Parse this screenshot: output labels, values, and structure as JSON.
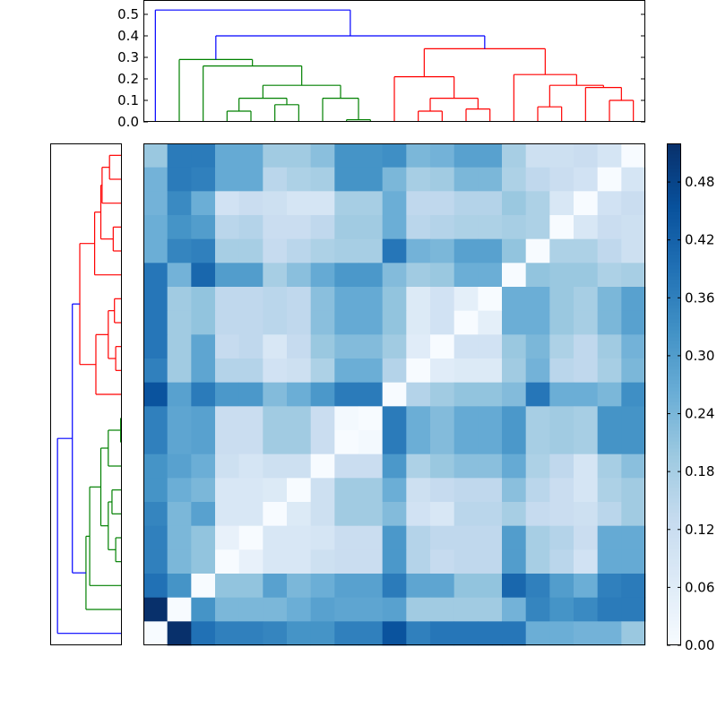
{
  "chart_data": [
    {
      "type": "dendrogram",
      "orientation": "top",
      "ylim": [
        0,
        0.55
      ],
      "yticks": [
        0.0,
        0.1,
        0.2,
        0.3,
        0.4,
        0.5
      ],
      "ytick_labels": [
        "0.0",
        "0.1",
        "0.2",
        "0.3",
        "0.4",
        "0.5"
      ],
      "leaf_count": 21,
      "root": {
        "h": 0.52,
        "color": "blue",
        "children": [
          {
            "leaf": 0
          },
          {
            "h": 0.4,
            "color": "blue",
            "children": [
              {
                "h": 0.29,
                "color": "green",
                "children": [
                  {
                    "leaf": 1
                  },
                  {
                    "h": 0.26,
                    "color": "green",
                    "children": [
                      {
                        "leaf": 2
                      },
                      {
                        "h": 0.17,
                        "color": "green",
                        "children": [
                          {
                            "h": 0.11,
                            "color": "green",
                            "children": [
                              {
                                "h": 0.05,
                                "color": "green",
                                "children": [
                                  {
                                    "leaf": 3
                                  },
                                  {
                                    "leaf": 4
                                  }
                                ]
                              },
                              {
                                "h": 0.08,
                                "color": "green",
                                "children": [
                                  {
                                    "leaf": 5
                                  },
                                  {
                                    "leaf": 6
                                  }
                                ]
                              }
                            ]
                          },
                          {
                            "h": 0.11,
                            "color": "green",
                            "children": [
                              {
                                "leaf": 7
                              },
                              {
                                "h": 0.01,
                                "color": "green",
                                "children": [
                                  {
                                    "leaf": 8
                                  },
                                  {
                                    "leaf": 9
                                  }
                                ]
                              }
                            ]
                          }
                        ]
                      }
                    ]
                  }
                ]
              },
              {
                "h": 0.34,
                "color": "red",
                "children": [
                  {
                    "h": 0.21,
                    "color": "red",
                    "children": [
                      {
                        "leaf": 10
                      },
                      {
                        "h": 0.11,
                        "color": "red",
                        "children": [
                          {
                            "h": 0.05,
                            "color": "red",
                            "children": [
                              {
                                "leaf": 11
                              },
                              {
                                "leaf": 12
                              }
                            ]
                          },
                          {
                            "h": 0.06,
                            "color": "red",
                            "children": [
                              {
                                "leaf": 13
                              },
                              {
                                "leaf": 14
                              }
                            ]
                          }
                        ]
                      }
                    ]
                  },
                  {
                    "h": 0.22,
                    "color": "red",
                    "children": [
                      {
                        "leaf": 15
                      },
                      {
                        "h": 0.17,
                        "color": "red",
                        "children": [
                          {
                            "h": 0.07,
                            "color": "red",
                            "children": [
                              {
                                "leaf": 16
                              },
                              {
                                "leaf": 17
                              }
                            ]
                          },
                          {
                            "h": 0.16,
                            "color": "red",
                            "children": [
                              {
                                "leaf": 18
                              },
                              {
                                "h": 0.1,
                                "color": "red",
                                "children": [
                                  {
                                    "leaf": 19
                                  },
                                  {
                                    "leaf": 20
                                  }
                                ]
                              }
                            ]
                          }
                        ]
                      }
                    ]
                  }
                ]
              }
            ]
          }
        ]
      }
    },
    {
      "type": "dendrogram",
      "orientation": "left",
      "leaf_count": 21,
      "note": "same hierarchy as the top dendrogram, drawn from the left; leaf 0 at bottom row",
      "mirror_of": "top"
    },
    {
      "type": "heatmap",
      "rows": 21,
      "cols": 21,
      "colormap": "Blues",
      "vmin": 0.0,
      "vmax": 0.52,
      "row_order": "top row = leaf 20, bottom row = leaf 0",
      "col_order": "left column = leaf 0, right column = leaf 20",
      "cell_values_note": "pairwise distances; symmetric, diagonal = 0",
      "values": [
        [
          0.2,
          0.37,
          0.37,
          0.27,
          0.27,
          0.19,
          0.19,
          0.22,
          0.32,
          0.32,
          0.33,
          0.24,
          0.25,
          0.29,
          0.29,
          0.18,
          0.11,
          0.11,
          0.12,
          0.09,
          0.0
        ],
        [
          0.25,
          0.37,
          0.36,
          0.27,
          0.27,
          0.15,
          0.17,
          0.18,
          0.32,
          0.32,
          0.24,
          0.18,
          0.19,
          0.24,
          0.24,
          0.17,
          0.14,
          0.12,
          0.1,
          0.0,
          0.09
        ],
        [
          0.25,
          0.34,
          0.26,
          0.1,
          0.12,
          0.11,
          0.09,
          0.09,
          0.18,
          0.18,
          0.26,
          0.14,
          0.14,
          0.16,
          0.16,
          0.2,
          0.17,
          0.08,
          0.0,
          0.1,
          0.12
        ],
        [
          0.26,
          0.32,
          0.3,
          0.15,
          0.16,
          0.12,
          0.12,
          0.14,
          0.19,
          0.19,
          0.26,
          0.15,
          0.16,
          0.17,
          0.17,
          0.18,
          0.17,
          0.0,
          0.08,
          0.12,
          0.11
        ],
        [
          0.26,
          0.35,
          0.36,
          0.18,
          0.18,
          0.13,
          0.15,
          0.17,
          0.18,
          0.18,
          0.38,
          0.25,
          0.24,
          0.29,
          0.29,
          0.21,
          0.0,
          0.17,
          0.17,
          0.14,
          0.11
        ],
        [
          0.38,
          0.25,
          0.41,
          0.3,
          0.3,
          0.18,
          0.22,
          0.27,
          0.31,
          0.31,
          0.23,
          0.19,
          0.2,
          0.26,
          0.26,
          0.0,
          0.21,
          0.2,
          0.2,
          0.17,
          0.18
        ],
        [
          0.38,
          0.19,
          0.21,
          0.14,
          0.14,
          0.15,
          0.14,
          0.22,
          0.27,
          0.27,
          0.21,
          0.07,
          0.1,
          0.05,
          0.0,
          0.26,
          0.26,
          0.2,
          0.18,
          0.24,
          0.29
        ],
        [
          0.38,
          0.19,
          0.21,
          0.14,
          0.14,
          0.15,
          0.14,
          0.22,
          0.27,
          0.27,
          0.21,
          0.07,
          0.1,
          0.0,
          0.05,
          0.26,
          0.26,
          0.2,
          0.18,
          0.24,
          0.29
        ],
        [
          0.38,
          0.19,
          0.28,
          0.13,
          0.14,
          0.08,
          0.13,
          0.2,
          0.23,
          0.23,
          0.19,
          0.06,
          0.0,
          0.1,
          0.1,
          0.2,
          0.24,
          0.17,
          0.14,
          0.19,
          0.25
        ],
        [
          0.36,
          0.19,
          0.28,
          0.16,
          0.16,
          0.1,
          0.11,
          0.17,
          0.26,
          0.26,
          0.16,
          0.0,
          0.06,
          0.07,
          0.07,
          0.19,
          0.25,
          0.15,
          0.14,
          0.18,
          0.24
        ],
        [
          0.45,
          0.29,
          0.37,
          0.31,
          0.31,
          0.23,
          0.26,
          0.31,
          0.37,
          0.37,
          0.0,
          0.16,
          0.19,
          0.21,
          0.21,
          0.23,
          0.38,
          0.26,
          0.26,
          0.24,
          0.33
        ],
        [
          0.36,
          0.28,
          0.29,
          0.12,
          0.12,
          0.19,
          0.19,
          0.12,
          0.01,
          0.0,
          0.37,
          0.26,
          0.23,
          0.27,
          0.27,
          0.31,
          0.18,
          0.19,
          0.18,
          0.32,
          0.32
        ],
        [
          0.36,
          0.28,
          0.29,
          0.12,
          0.12,
          0.19,
          0.19,
          0.12,
          0.0,
          0.01,
          0.37,
          0.26,
          0.23,
          0.27,
          0.27,
          0.31,
          0.18,
          0.19,
          0.18,
          0.32,
          0.32
        ],
        [
          0.32,
          0.29,
          0.26,
          0.11,
          0.09,
          0.11,
          0.11,
          0.0,
          0.12,
          0.12,
          0.31,
          0.17,
          0.2,
          0.22,
          0.22,
          0.27,
          0.17,
          0.14,
          0.09,
          0.18,
          0.22
        ],
        [
          0.32,
          0.26,
          0.24,
          0.08,
          0.08,
          0.07,
          0.0,
          0.11,
          0.19,
          0.19,
          0.26,
          0.11,
          0.13,
          0.14,
          0.14,
          0.22,
          0.15,
          0.12,
          0.09,
          0.17,
          0.19
        ],
        [
          0.35,
          0.24,
          0.29,
          0.08,
          0.08,
          0.0,
          0.07,
          0.11,
          0.19,
          0.19,
          0.23,
          0.1,
          0.08,
          0.15,
          0.15,
          0.18,
          0.13,
          0.12,
          0.11,
          0.15,
          0.19
        ],
        [
          0.36,
          0.24,
          0.21,
          0.04,
          0.0,
          0.08,
          0.08,
          0.09,
          0.12,
          0.12,
          0.31,
          0.16,
          0.14,
          0.14,
          0.14,
          0.3,
          0.18,
          0.16,
          0.12,
          0.27,
          0.27
        ],
        [
          0.36,
          0.24,
          0.21,
          0.0,
          0.04,
          0.08,
          0.08,
          0.11,
          0.12,
          0.12,
          0.31,
          0.16,
          0.13,
          0.14,
          0.14,
          0.3,
          0.18,
          0.15,
          0.1,
          0.27,
          0.27
        ],
        [
          0.39,
          0.32,
          0.0,
          0.21,
          0.21,
          0.29,
          0.24,
          0.26,
          0.29,
          0.29,
          0.37,
          0.28,
          0.28,
          0.21,
          0.21,
          0.41,
          0.36,
          0.3,
          0.26,
          0.36,
          0.37
        ],
        [
          0.52,
          0.0,
          0.32,
          0.24,
          0.24,
          0.24,
          0.26,
          0.29,
          0.28,
          0.28,
          0.29,
          0.19,
          0.19,
          0.19,
          0.19,
          0.25,
          0.35,
          0.32,
          0.34,
          0.37,
          0.37
        ],
        [
          0.0,
          0.52,
          0.39,
          0.36,
          0.36,
          0.35,
          0.32,
          0.32,
          0.36,
          0.36,
          0.45,
          0.36,
          0.38,
          0.38,
          0.38,
          0.38,
          0.26,
          0.26,
          0.25,
          0.25,
          0.2
        ]
      ]
    },
    {
      "type": "colorbar",
      "vmin": 0.0,
      "vmax": 0.52,
      "ticks": [
        0.0,
        0.06,
        0.12,
        0.18,
        0.24,
        0.3,
        0.36,
        0.42,
        0.48
      ],
      "tick_labels": [
        "0.00",
        "0.06",
        "0.12",
        "0.18",
        "0.24",
        "0.30",
        "0.36",
        "0.42",
        "0.48"
      ]
    }
  ],
  "colors": {
    "blue": "#0000ff",
    "green": "#008000",
    "red": "#ff0000",
    "frame": "#000000"
  },
  "icons": {
    "figure": "clustered-heatmap"
  }
}
